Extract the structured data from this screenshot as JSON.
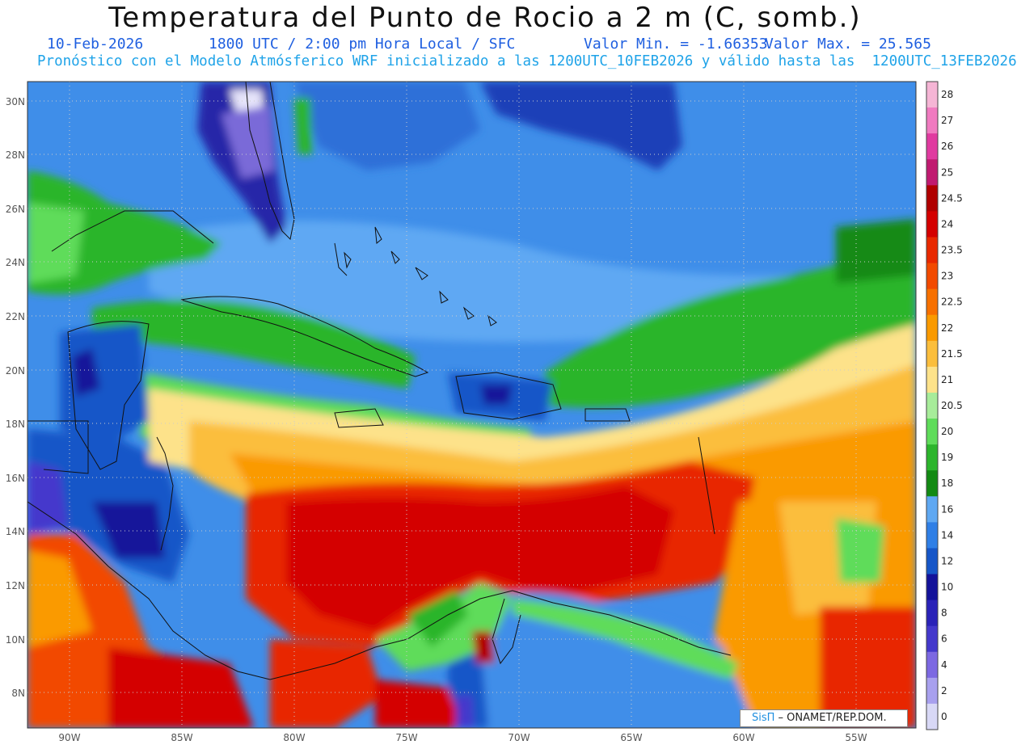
{
  "header": {
    "title": "Temperatura del Punto de Rocio a 2 m (C, somb.)",
    "date": "10-Feb-2026",
    "time": "1800 UTC / 2:00 pm Hora Local / SFC",
    "valmin": "Valor Min. = -1.66353",
    "valmax": "Valor Max. = 25.565",
    "info": "Pronóstico con el Modelo Atmósferico WRF inicializado a las 1200UTC_10FEB2026 y válido hasta las  1200UTC_13FEB2026"
  },
  "axes": {
    "lat_labels": [
      "30N",
      "28N",
      "26N",
      "24N",
      "22N",
      "20N",
      "18N",
      "16N",
      "14N",
      "12N",
      "10N",
      "8N"
    ],
    "lon_labels": [
      "90W",
      "85W",
      "80W",
      "75W",
      "70W",
      "65W",
      "60W",
      "55W"
    ]
  },
  "colorbar": {
    "labels": [
      "28",
      "27",
      "26",
      "25",
      "24.5",
      "24",
      "23.5",
      "23",
      "22.5",
      "22",
      "21.5",
      "21",
      "20.5",
      "20",
      "19",
      "18",
      "16",
      "14",
      "12",
      "10",
      "8",
      "6",
      "4",
      "2",
      "0"
    ],
    "colors": [
      "#f5b5d5",
      "#f07ac0",
      "#e03aa0",
      "#c01a70",
      "#b00000",
      "#d40000",
      "#e82800",
      "#f24a00",
      "#f77000",
      "#fa9a00",
      "#fbbe3c",
      "#fde28a",
      "#a7ec9a",
      "#5fdc5a",
      "#2cb52c",
      "#138a13",
      "#5fa8f2",
      "#2f7fe6",
      "#1656c8",
      "#13129a",
      "#2a22b8",
      "#4438cc",
      "#7c68e2",
      "#a8a0ee",
      "#d8d8f6"
    ]
  },
  "credit": {
    "sis": "SisΠ",
    "org": " – ONAMET/REP.DOM."
  }
}
